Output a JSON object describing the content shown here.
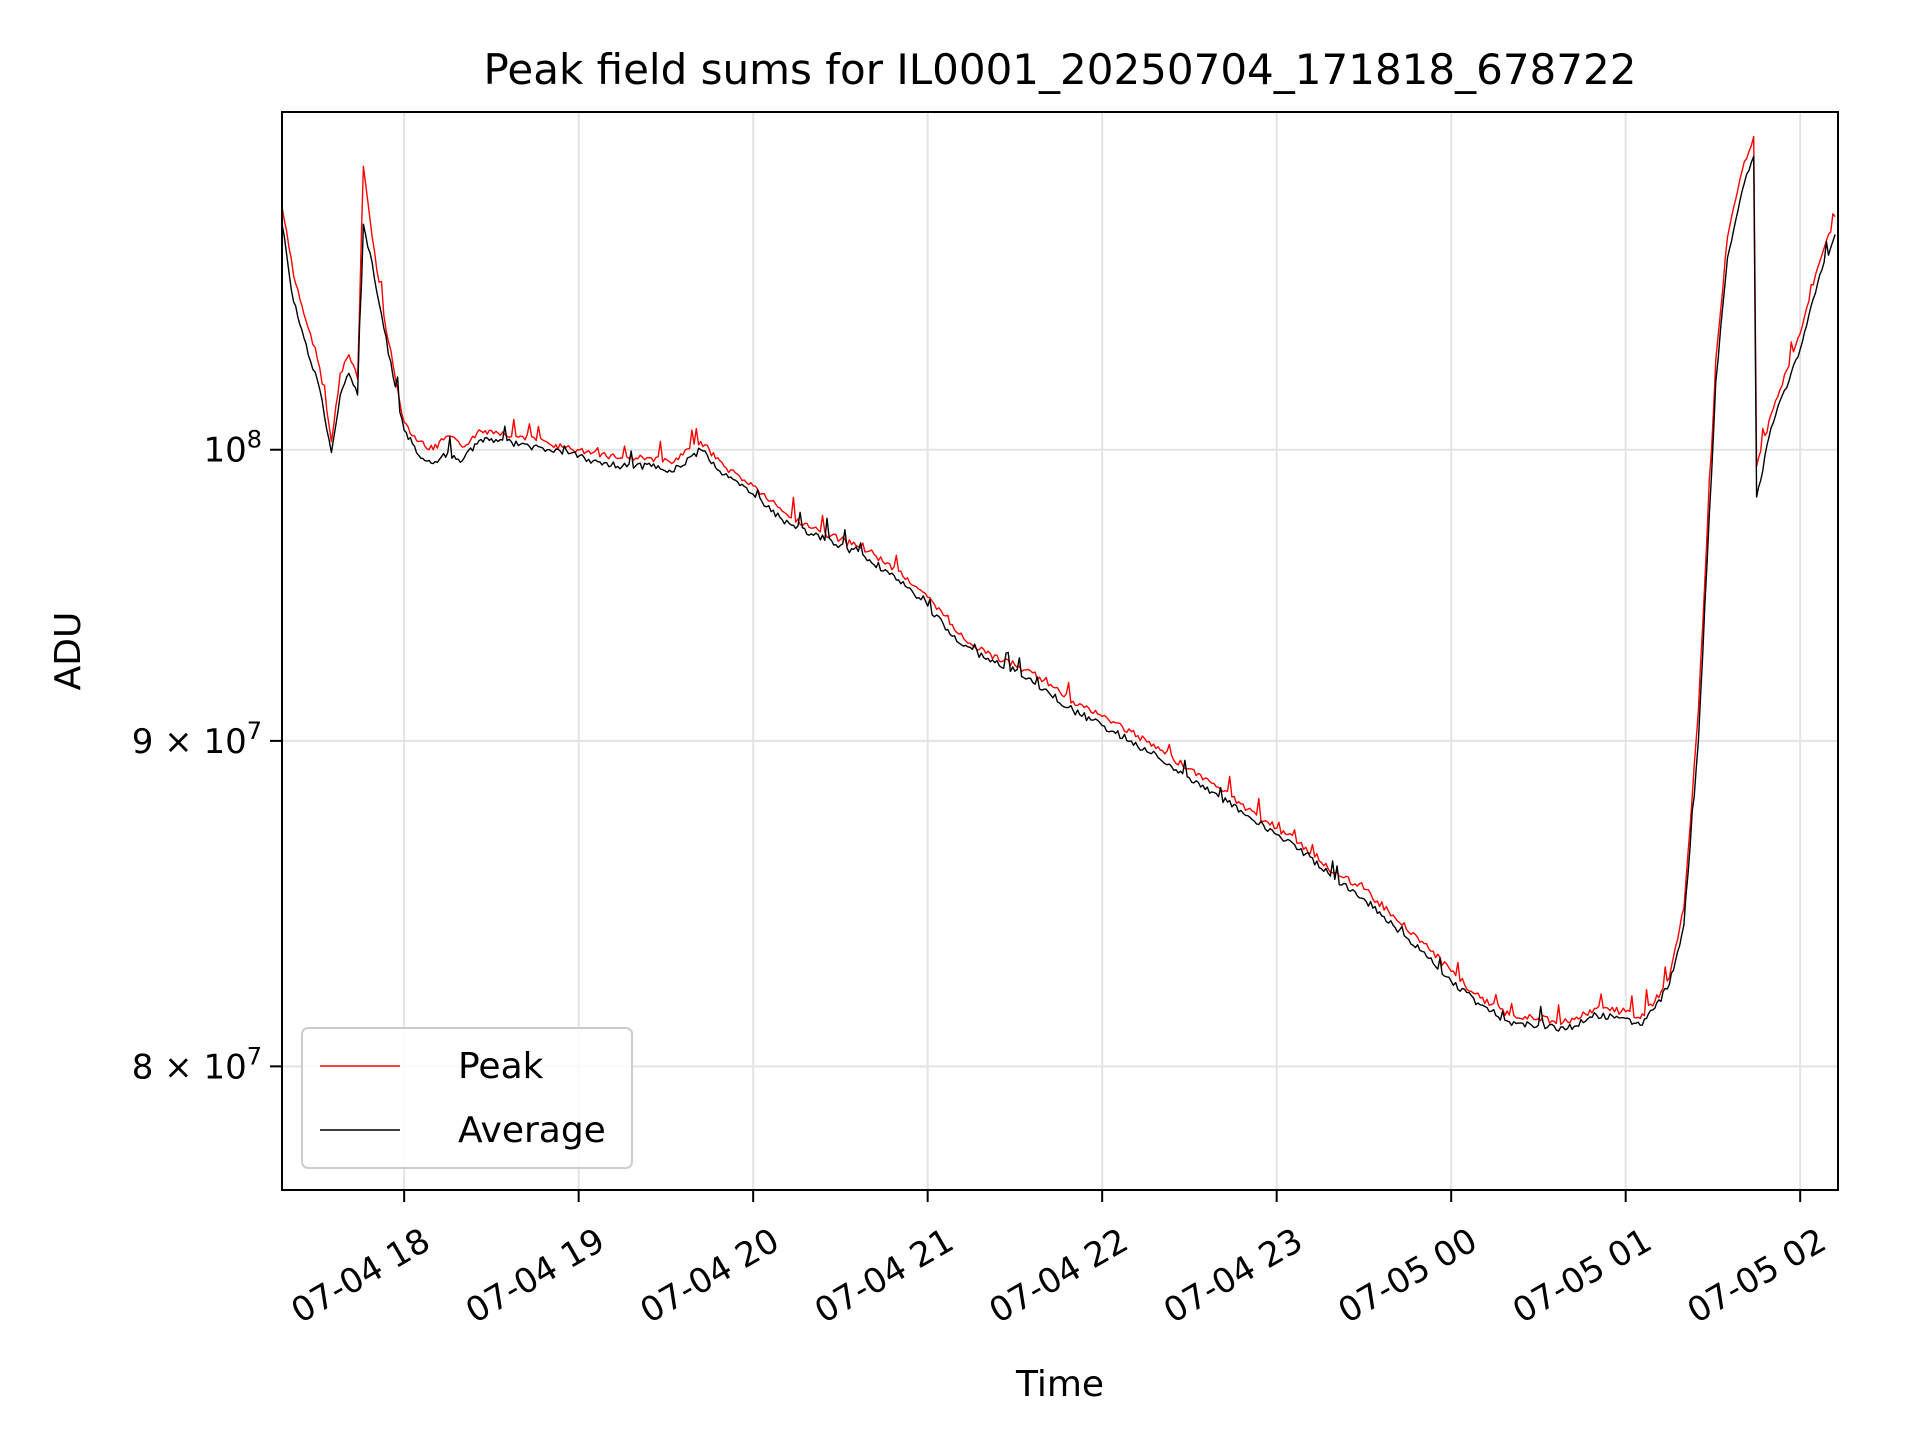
{
  "chart_data": {
    "type": "line",
    "title": "Peak field sums for IL0001_20250704_171818_678722",
    "xlabel": "Time",
    "ylabel": "ADU",
    "x_range": [
      "2025-07-04 17:18",
      "2025-07-05 02:13"
    ],
    "ylim": [
      76500000,
      113000000
    ],
    "yscale": "log",
    "x_ticks": [
      "07-04 18",
      "07-04 19",
      "07-04 20",
      "07-04 21",
      "07-04 22",
      "07-04 23",
      "07-05 00",
      "07-05 01",
      "07-05 02"
    ],
    "y_ticks": [
      {
        "value": 100000000,
        "label_base": "10",
        "label_sup": "8"
      },
      {
        "value": 90000000,
        "label_base": "9 × 10",
        "label_sup": "7"
      },
      {
        "value": 80000000,
        "label_base": "8 × 10",
        "label_sup": "7"
      }
    ],
    "grid": true,
    "legend_position": "lower-left",
    "series": [
      {
        "name": "Peak",
        "color": "#ff0000",
        "points": [
          [
            "2025-07-04 17:18",
            109200000
          ],
          [
            "2025-07-04 17:22",
            106500000
          ],
          [
            "2025-07-04 17:27",
            104500000
          ],
          [
            "2025-07-04 17:31",
            103000000
          ],
          [
            "2025-07-04 17:35",
            100300000
          ],
          [
            "2025-07-04 17:38",
            102800000
          ],
          [
            "2025-07-04 17:41",
            103500000
          ],
          [
            "2025-07-04 17:44",
            102600000
          ],
          [
            "2025-07-04 17:46",
            110800000
          ],
          [
            "2025-07-04 17:49",
            108000000
          ],
          [
            "2025-07-04 17:53",
            105000000
          ],
          [
            "2025-07-04 17:57",
            102600000
          ],
          [
            "2025-07-04 18:00",
            101000000
          ],
          [
            "2025-07-04 18:05",
            100300000
          ],
          [
            "2025-07-04 18:10",
            100000000
          ],
          [
            "2025-07-04 18:15",
            100500000
          ],
          [
            "2025-07-04 18:20",
            100100000
          ],
          [
            "2025-07-04 18:25",
            100600000
          ],
          [
            "2025-07-04 18:30",
            100700000
          ],
          [
            "2025-07-04 18:40",
            100500000
          ],
          [
            "2025-07-04 18:50",
            100200000
          ],
          [
            "2025-07-04 18:58",
            100000000
          ],
          [
            "2025-07-04 19:05",
            99900000
          ],
          [
            "2025-07-04 19:15",
            99700000
          ],
          [
            "2025-07-04 19:25",
            99700000
          ],
          [
            "2025-07-04 19:32",
            99500000
          ],
          [
            "2025-07-04 19:42",
            100300000
          ],
          [
            "2025-07-04 19:50",
            99400000
          ],
          [
            "2025-07-04 20:00",
            98700000
          ],
          [
            "2025-07-04 20:10",
            97800000
          ],
          [
            "2025-07-04 20:20",
            97200000
          ],
          [
            "2025-07-04 20:30",
            96800000
          ],
          [
            "2025-07-04 20:40",
            96400000
          ],
          [
            "2025-07-04 20:50",
            95700000
          ],
          [
            "2025-07-04 21:00",
            94800000
          ],
          [
            "2025-07-04 21:10",
            93600000
          ],
          [
            "2025-07-04 21:20",
            92900000
          ],
          [
            "2025-07-04 21:30",
            92500000
          ],
          [
            "2025-07-04 21:40",
            92000000
          ],
          [
            "2025-07-04 21:50",
            91300000
          ],
          [
            "2025-07-04 22:00",
            90800000
          ],
          [
            "2025-07-04 22:10",
            90300000
          ],
          [
            "2025-07-04 22:20",
            89700000
          ],
          [
            "2025-07-04 22:30",
            89100000
          ],
          [
            "2025-07-04 22:40",
            88500000
          ],
          [
            "2025-07-04 22:50",
            87800000
          ],
          [
            "2025-07-04 23:00",
            87200000
          ],
          [
            "2025-07-04 23:10",
            86600000
          ],
          [
            "2025-07-04 23:20",
            85800000
          ],
          [
            "2025-07-04 23:30",
            85300000
          ],
          [
            "2025-07-04 23:40",
            84500000
          ],
          [
            "2025-07-04 23:50",
            83700000
          ],
          [
            "2025-07-05 00:00",
            82800000
          ],
          [
            "2025-07-05 00:10",
            82000000
          ],
          [
            "2025-07-05 00:20",
            81500000
          ],
          [
            "2025-07-05 00:30",
            81400000
          ],
          [
            "2025-07-05 00:40",
            81300000
          ],
          [
            "2025-07-05 00:50",
            81700000
          ],
          [
            "2025-07-05 01:00",
            81600000
          ],
          [
            "2025-07-05 01:05",
            81400000
          ],
          [
            "2025-07-05 01:10",
            81900000
          ],
          [
            "2025-07-05 01:15",
            82600000
          ],
          [
            "2025-07-05 01:20",
            84700000
          ],
          [
            "2025-07-05 01:25",
            91000000
          ],
          [
            "2025-07-05 01:28",
            97000000
          ],
          [
            "2025-07-05 01:31",
            103300000
          ],
          [
            "2025-07-05 01:35",
            108000000
          ],
          [
            "2025-07-05 01:40",
            110600000
          ],
          [
            "2025-07-05 01:44",
            112000000
          ],
          [
            "2025-07-05 01:45",
            99400000
          ],
          [
            "2025-07-05 01:50",
            101300000
          ],
          [
            "2025-07-05 02:00",
            104300000
          ],
          [
            "2025-07-05 02:06",
            106800000
          ],
          [
            "2025-07-05 02:12",
            108800000
          ]
        ]
      },
      {
        "name": "Average",
        "color": "#000000",
        "points": [
          [
            "2025-07-04 17:18",
            108500000
          ],
          [
            "2025-07-04 17:22",
            105500000
          ],
          [
            "2025-07-04 17:27",
            103500000
          ],
          [
            "2025-07-04 17:31",
            102200000
          ],
          [
            "2025-07-04 17:35",
            99900000
          ],
          [
            "2025-07-04 17:38",
            102000000
          ],
          [
            "2025-07-04 17:41",
            102800000
          ],
          [
            "2025-07-04 17:44",
            102000000
          ],
          [
            "2025-07-04 17:46",
            108500000
          ],
          [
            "2025-07-04 17:49",
            107000000
          ],
          [
            "2025-07-04 17:53",
            104500000
          ],
          [
            "2025-07-04 17:57",
            102300000
          ],
          [
            "2025-07-04 18:00",
            100700000
          ],
          [
            "2025-07-04 18:05",
            99800000
          ],
          [
            "2025-07-04 18:10",
            99500000
          ],
          [
            "2025-07-04 18:15",
            99900000
          ],
          [
            "2025-07-04 18:20",
            99600000
          ],
          [
            "2025-07-04 18:25",
            100200000
          ],
          [
            "2025-07-04 18:30",
            100400000
          ],
          [
            "2025-07-04 18:40",
            100200000
          ],
          [
            "2025-07-04 18:50",
            100000000
          ],
          [
            "2025-07-04 18:58",
            99900000
          ],
          [
            "2025-07-04 19:05",
            99600000
          ],
          [
            "2025-07-04 19:15",
            99400000
          ],
          [
            "2025-07-04 19:25",
            99400000
          ],
          [
            "2025-07-04 19:32",
            99200000
          ],
          [
            "2025-07-04 19:42",
            100000000
          ],
          [
            "2025-07-04 19:50",
            99100000
          ],
          [
            "2025-07-04 20:00",
            98400000
          ],
          [
            "2025-07-04 20:10",
            97500000
          ],
          [
            "2025-07-04 20:20",
            97000000
          ],
          [
            "2025-07-04 20:30",
            96600000
          ],
          [
            "2025-07-04 20:40",
            96100000
          ],
          [
            "2025-07-04 20:50",
            95400000
          ],
          [
            "2025-07-04 21:00",
            94500000
          ],
          [
            "2025-07-04 21:10",
            93300000
          ],
          [
            "2025-07-04 21:20",
            92700000
          ],
          [
            "2025-07-04 21:30",
            92300000
          ],
          [
            "2025-07-04 21:40",
            91700000
          ],
          [
            "2025-07-04 21:50",
            91000000
          ],
          [
            "2025-07-04 22:00",
            90500000
          ],
          [
            "2025-07-04 22:10",
            90000000
          ],
          [
            "2025-07-04 22:20",
            89400000
          ],
          [
            "2025-07-04 22:30",
            88800000
          ],
          [
            "2025-07-04 22:40",
            88200000
          ],
          [
            "2025-07-04 22:50",
            87600000
          ],
          [
            "2025-07-04 23:00",
            87000000
          ],
          [
            "2025-07-04 23:10",
            86400000
          ],
          [
            "2025-07-04 23:20",
            85600000
          ],
          [
            "2025-07-04 23:30",
            85000000
          ],
          [
            "2025-07-04 23:40",
            84200000
          ],
          [
            "2025-07-04 23:50",
            83400000
          ],
          [
            "2025-07-05 00:00",
            82500000
          ],
          [
            "2025-07-05 00:10",
            81800000
          ],
          [
            "2025-07-05 00:20",
            81300000
          ],
          [
            "2025-07-05 00:30",
            81200000
          ],
          [
            "2025-07-05 00:40",
            81100000
          ],
          [
            "2025-07-05 00:50",
            81500000
          ],
          [
            "2025-07-05 01:00",
            81400000
          ],
          [
            "2025-07-05 01:05",
            81200000
          ],
          [
            "2025-07-05 01:10",
            81700000
          ],
          [
            "2025-07-05 01:15",
            82400000
          ],
          [
            "2025-07-05 01:20",
            84200000
          ],
          [
            "2025-07-05 01:25",
            90000000
          ],
          [
            "2025-07-05 01:28",
            96000000
          ],
          [
            "2025-07-05 01:31",
            102500000
          ],
          [
            "2025-07-05 01:35",
            107200000
          ],
          [
            "2025-07-05 01:40",
            109800000
          ],
          [
            "2025-07-05 01:44",
            111200000
          ],
          [
            "2025-07-05 01:45",
            98300000
          ],
          [
            "2025-07-05 01:50",
            100800000
          ],
          [
            "2025-07-05 02:00",
            103700000
          ],
          [
            "2025-07-05 02:06",
            106200000
          ],
          [
            "2025-07-05 02:12",
            108100000
          ]
        ]
      }
    ]
  }
}
